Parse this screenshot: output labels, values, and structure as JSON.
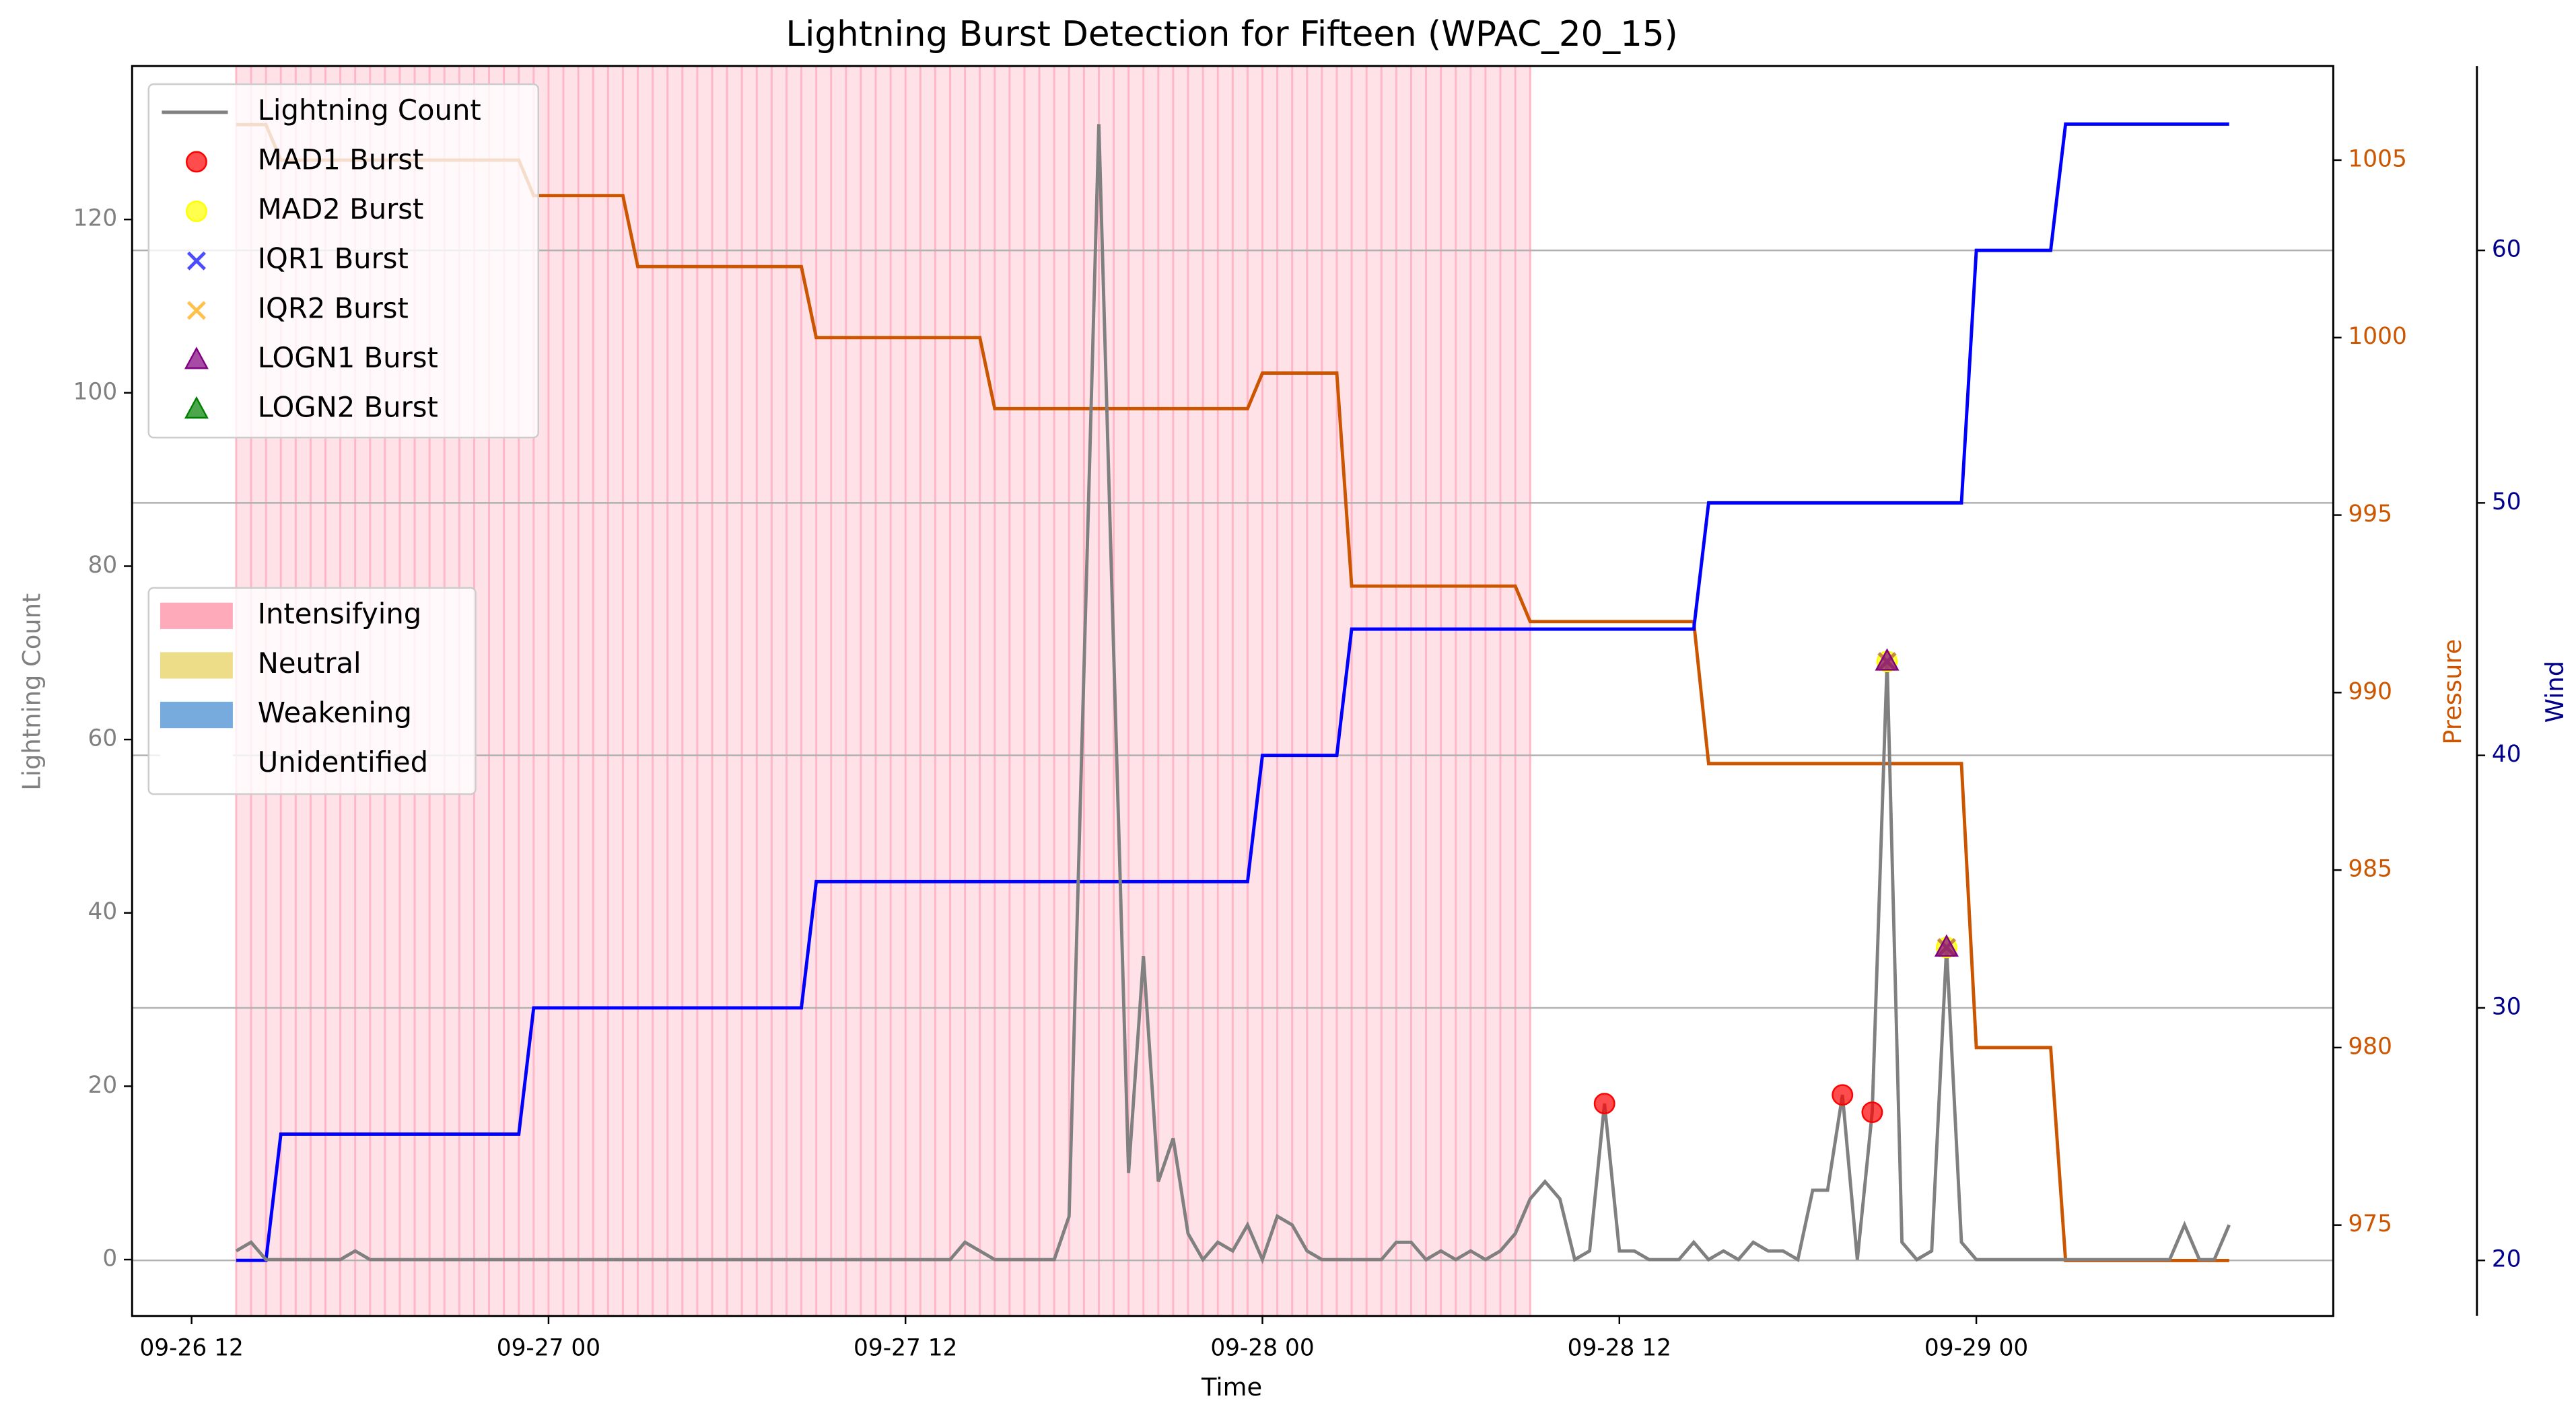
{
  "chart_data": {
    "type": "line",
    "title": "Lightning Burst Detection for Fifteen (WPAC_20_15)",
    "xlabel": "Time",
    "ylabel": "Lightning Count",
    "y2label": "Pressure",
    "y3label": "Wind",
    "x": [
      "09-26 13:30",
      "09-26 14:00",
      "09-26 14:30",
      "09-26 15:00",
      "09-26 15:30",
      "09-26 16:00",
      "09-26 16:30",
      "09-26 17:00",
      "09-26 17:30",
      "09-26 18:00",
      "09-26 18:30",
      "09-26 19:00",
      "09-26 19:30",
      "09-26 20:00",
      "09-26 20:30",
      "09-26 21:00",
      "09-26 21:30",
      "09-26 22:00",
      "09-26 22:30",
      "09-26 23:00",
      "09-26 23:30",
      "09-27 00:00",
      "09-27 00:30",
      "09-27 01:00",
      "09-27 01:30",
      "09-27 02:00",
      "09-27 02:30",
      "09-27 03:00",
      "09-27 03:30",
      "09-27 04:00",
      "09-27 04:30",
      "09-27 05:00",
      "09-27 05:30",
      "09-27 06:00",
      "09-27 06:30",
      "09-27 07:00",
      "09-27 07:30",
      "09-27 08:00",
      "09-27 08:30",
      "09-27 09:00",
      "09-27 09:30",
      "09-27 10:00",
      "09-27 10:30",
      "09-27 11:00",
      "09-27 11:30",
      "09-27 12:00",
      "09-27 12:30",
      "09-27 13:00",
      "09-27 13:30",
      "09-27 14:00",
      "09-27 14:30",
      "09-27 15:00",
      "09-27 15:30",
      "09-27 16:00",
      "09-27 16:30",
      "09-27 17:00",
      "09-27 17:30",
      "09-27 18:00",
      "09-27 18:30",
      "09-27 19:00",
      "09-27 19:30",
      "09-27 20:00",
      "09-27 20:30",
      "09-27 21:00",
      "09-27 21:30",
      "09-27 22:00",
      "09-27 22:30",
      "09-27 23:00",
      "09-27 23:30",
      "09-28 00:00",
      "09-28 00:30",
      "09-28 01:00",
      "09-28 01:30",
      "09-28 02:00",
      "09-28 02:30",
      "09-28 03:00",
      "09-28 03:30",
      "09-28 04:00",
      "09-28 04:30",
      "09-28 05:00",
      "09-28 05:30",
      "09-28 06:00",
      "09-28 06:30",
      "09-28 07:00",
      "09-28 07:30",
      "09-28 08:00",
      "09-28 08:30",
      "09-28 09:00",
      "09-28 09:30",
      "09-28 10:00",
      "09-28 10:30",
      "09-28 11:00",
      "09-28 11:30",
      "09-28 12:00",
      "09-28 12:30",
      "09-28 13:00",
      "09-28 13:30",
      "09-28 14:00",
      "09-28 14:30",
      "09-28 15:00",
      "09-28 15:30",
      "09-28 16:00",
      "09-28 16:30",
      "09-28 17:00",
      "09-28 17:30",
      "09-28 18:00",
      "09-28 18:30",
      "09-28 19:00",
      "09-28 19:30",
      "09-28 20:00",
      "09-28 20:30",
      "09-28 21:00",
      "09-28 21:30",
      "09-28 22:00",
      "09-28 22:30",
      "09-28 23:00",
      "09-28 23:30",
      "09-29 00:00",
      "09-29 00:30",
      "09-29 01:00",
      "09-29 01:30",
      "09-29 02:00",
      "09-29 02:30",
      "09-29 03:00",
      "09-29 03:30",
      "09-29 04:00",
      "09-29 04:30",
      "09-29 05:00",
      "09-29 05:30",
      "09-29 06:00",
      "09-29 06:30",
      "09-29 07:00",
      "09-29 07:30",
      "09-29 08:00",
      "09-29 08:30"
    ],
    "series": [
      {
        "name": "Lightning Count",
        "marker": "line",
        "color": "#808080",
        "values": [
          1,
          2,
          0,
          0,
          0,
          0,
          0,
          0,
          1,
          0,
          0,
          0,
          0,
          0,
          0,
          0,
          0,
          0,
          0,
          0,
          0,
          0,
          0,
          0,
          0,
          0,
          0,
          0,
          0,
          0,
          0,
          0,
          0,
          0,
          0,
          0,
          0,
          0,
          0,
          0,
          0,
          0,
          0,
          0,
          0,
          0,
          0,
          0,
          0,
          2,
          1,
          0,
          0,
          0,
          0,
          0,
          5,
          68,
          131,
          70,
          10,
          35,
          9,
          14,
          3,
          0,
          2,
          1,
          4,
          0,
          5,
          4,
          1,
          0,
          0,
          0,
          0,
          0,
          2,
          2,
          0,
          1,
          0,
          1,
          0,
          1,
          3,
          7,
          9,
          7,
          0,
          1,
          18,
          1,
          1,
          0,
          0,
          0,
          2,
          0,
          1,
          0,
          2,
          1,
          1,
          0,
          8,
          8,
          19,
          0,
          17,
          69,
          2,
          0,
          1,
          36,
          2,
          0,
          0,
          0,
          0,
          0,
          0,
          0,
          0,
          0,
          0,
          0,
          0,
          0,
          0,
          4,
          0,
          0,
          4
        ]
      },
      {
        "name": "MAD1 Burst",
        "marker": "o",
        "color": "#ff0000",
        "x": [
          "09-28 11:30",
          "09-28 19:30",
          "09-28 20:30"
        ],
        "values": [
          18,
          19,
          17
        ]
      },
      {
        "name": "MAD2 Burst",
        "marker": "o",
        "color": "#ffff00",
        "x": [
          "09-28 21:00",
          "09-28 23:00"
        ],
        "values": [
          69,
          36
        ]
      },
      {
        "name": "IQR1 Burst",
        "marker": "x",
        "color": "#0000ff",
        "x": [
          "09-28 21:00",
          "09-28 23:00"
        ],
        "values": [
          69,
          36
        ]
      },
      {
        "name": "IQR2 Burst",
        "marker": "x",
        "color": "#ffa500",
        "x": [
          "09-28 21:00",
          "09-28 23:00"
        ],
        "values": [
          69,
          36
        ]
      },
      {
        "name": "LOGN1 Burst",
        "marker": "^",
        "color": "#800080",
        "x": [
          "09-28 21:00",
          "09-28 23:00"
        ],
        "values": [
          69,
          36
        ]
      },
      {
        "name": "LOGN2 Burst",
        "marker": "^",
        "color": "#008000",
        "x": [],
        "values": []
      }
    ],
    "pressure": {
      "axis": "y2",
      "color": "#cc5500",
      "values": [
        1006,
        1006,
        1006,
        1005,
        1005,
        1005,
        1005,
        1005,
        1005,
        1005,
        1005,
        1005,
        1005,
        1005,
        1005,
        1005,
        1005,
        1005,
        1005,
        1005,
        1004,
        1004,
        1004,
        1004,
        1004,
        1004,
        1004,
        1002,
        1002,
        1002,
        1002,
        1002,
        1002,
        1002,
        1002,
        1002,
        1002,
        1002,
        1002,
        1000,
        1000,
        1000,
        1000,
        1000,
        1000,
        1000,
        1000,
        1000,
        1000,
        1000,
        1000,
        998,
        998,
        998,
        998,
        998,
        998,
        998,
        998,
        998,
        998,
        998,
        998,
        998,
        998,
        998,
        998,
        998,
        998,
        999,
        999,
        999,
        999,
        999,
        999,
        993,
        993,
        993,
        993,
        993,
        993,
        993,
        993,
        993,
        993,
        993,
        993,
        992,
        992,
        992,
        992,
        992,
        992,
        992,
        992,
        992,
        992,
        992,
        992,
        988,
        988,
        988,
        988,
        988,
        988,
        988,
        988,
        988,
        988,
        988,
        988,
        988,
        988,
        988,
        988,
        988,
        988,
        980,
        980,
        980,
        980,
        980,
        980,
        974,
        974,
        974,
        974,
        974,
        974,
        974,
        974,
        974,
        974,
        974,
        974
      ]
    },
    "wind": {
      "axis": "y3",
      "color": "#0000ff",
      "values": [
        20,
        20,
        20,
        25,
        25,
        25,
        25,
        25,
        25,
        25,
        25,
        25,
        25,
        25,
        25,
        25,
        25,
        25,
        25,
        25,
        30,
        30,
        30,
        30,
        30,
        30,
        30,
        30,
        30,
        30,
        30,
        30,
        30,
        30,
        30,
        30,
        30,
        30,
        30,
        35,
        35,
        35,
        35,
        35,
        35,
        35,
        35,
        35,
        35,
        35,
        35,
        35,
        35,
        35,
        35,
        35,
        35,
        35,
        35,
        35,
        35,
        35,
        35,
        35,
        35,
        35,
        35,
        35,
        35,
        40,
        40,
        40,
        40,
        40,
        40,
        45,
        45,
        45,
        45,
        45,
        45,
        45,
        45,
        45,
        45,
        45,
        45,
        45,
        45,
        45,
        45,
        45,
        45,
        45,
        45,
        45,
        45,
        45,
        45,
        50,
        50,
        50,
        50,
        50,
        50,
        50,
        50,
        50,
        50,
        50,
        50,
        50,
        50,
        50,
        50,
        50,
        50,
        60,
        60,
        60,
        60,
        60,
        60,
        65,
        65,
        65,
        65,
        65,
        65,
        65,
        65,
        65,
        65,
        65,
        65
      ]
    },
    "phase_legend": [
      {
        "name": "Intensifying",
        "color": "#ffaabb"
      },
      {
        "name": "Neutral",
        "color": "#eedd88"
      },
      {
        "name": "Weakening",
        "color": "#77aadd"
      },
      {
        "name": "Unidentified",
        "color": "#ffffff"
      }
    ],
    "shaded_spans": [
      {
        "start": "09-26 13:30",
        "end": "09-28 09:00",
        "color": "#ffb6c6"
      }
    ],
    "xlim": [
      "09-26 10:00",
      "09-29 12:00"
    ],
    "xticks": [
      {
        "value": "09-26 12:00",
        "label": "09-26 12"
      },
      {
        "value": "09-27 00:00",
        "label": "09-27 00"
      },
      {
        "value": "09-27 12:00",
        "label": "09-27 12"
      },
      {
        "value": "09-28 00:00",
        "label": "09-28 00"
      },
      {
        "value": "09-28 12:00",
        "label": "09-28 12"
      },
      {
        "value": "09-29 00:00",
        "label": "09-29 00"
      }
    ],
    "ylim": [
      -6.5,
      137.7
    ],
    "yticks": [
      0,
      20,
      40,
      60,
      80,
      100,
      120
    ],
    "y2lim": [
      972.44,
      1007.65
    ],
    "y2ticks": [
      975,
      980,
      985,
      990,
      995,
      1000,
      1005
    ],
    "y3lim": [
      17.8,
      67.3
    ],
    "y3ticks": [
      20,
      30,
      40,
      50,
      60
    ],
    "grid": true,
    "legend_position": "upper left",
    "axis_colors": {
      "y": "#808080",
      "y2": "#cc5500",
      "y3": "#00008b"
    }
  }
}
